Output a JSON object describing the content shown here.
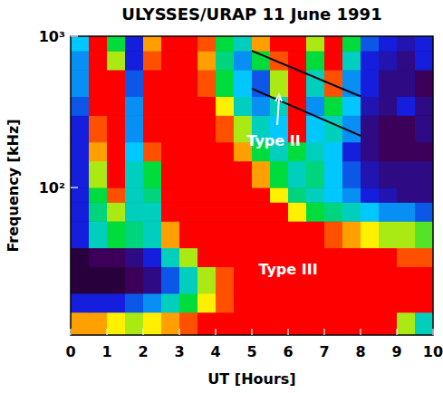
{
  "chart_data": {
    "type": "heatmap",
    "title": "ULYSSES/URAP 11 June 1991",
    "x_label": "UT [Hours]",
    "y_label": "Frequency [kHz]",
    "log": "y",
    "xlim": [
      0,
      10
    ],
    "ylim": [
      10.6,
      1000
    ],
    "xticks": [
      0,
      1,
      2,
      3,
      4,
      5,
      6,
      7,
      8,
      9,
      10
    ],
    "yticks": [
      {
        "value": 100,
        "label": "10²"
      },
      {
        "value": 1000,
        "label": "10³"
      }
    ],
    "zlim": [
      0,
      1
    ],
    "x_edges": [
      0,
      0.5,
      1,
      1.5,
      2,
      2.5,
      3,
      3.5,
      4,
      4.5,
      5,
      5.5,
      6,
      6.5,
      7,
      7.5,
      8,
      8.5,
      9,
      9.5,
      10
    ],
    "y_edges": [
      10.6,
      15,
      20,
      30,
      40,
      60,
      80,
      100,
      150,
      200,
      300,
      400,
      600,
      800,
      1000
    ],
    "cells": [
      [
        0.8,
        0.8,
        0.75,
        0.7,
        0.75,
        0.8,
        0.85,
        0.9,
        0.95,
        0.95,
        0.95,
        0.95,
        0.95,
        0.95,
        0.95,
        0.95,
        0.95,
        0.9,
        0.7,
        0.5
      ],
      [
        0.3,
        0.3,
        0.3,
        0.35,
        0.4,
        0.5,
        0.6,
        0.75,
        0.85,
        0.95,
        0.95,
        0.95,
        0.95,
        0.95,
        0.95,
        0.95,
        0.95,
        0.95,
        0.95,
        0.95
      ],
      [
        0.1,
        0.1,
        0.1,
        0.15,
        0.2,
        0.35,
        0.5,
        0.7,
        0.85,
        0.95,
        0.95,
        0.95,
        0.95,
        0.95,
        0.95,
        0.95,
        0.95,
        0.95,
        0.95,
        0.95
      ],
      [
        0.1,
        0.15,
        0.15,
        0.2,
        0.3,
        0.5,
        0.7,
        0.9,
        0.95,
        0.95,
        0.95,
        0.95,
        0.95,
        0.95,
        0.95,
        0.95,
        0.95,
        0.9,
        0.85,
        0.85
      ],
      [
        0.3,
        0.5,
        0.6,
        0.55,
        0.5,
        0.8,
        0.95,
        0.95,
        0.95,
        0.95,
        0.95,
        0.95,
        0.95,
        0.9,
        0.85,
        0.8,
        0.75,
        0.7,
        0.7,
        0.65
      ],
      [
        0.3,
        0.55,
        0.7,
        0.5,
        0.5,
        0.9,
        0.95,
        0.95,
        0.95,
        0.95,
        0.95,
        0.9,
        0.75,
        0.6,
        0.55,
        0.5,
        0.45,
        0.4,
        0.4,
        0.35
      ],
      [
        0.3,
        0.6,
        0.85,
        0.5,
        0.55,
        0.95,
        0.95,
        0.95,
        0.95,
        0.95,
        0.9,
        0.75,
        0.55,
        0.5,
        0.45,
        0.4,
        0.3,
        0.25,
        0.2,
        0.2
      ],
      [
        0.3,
        0.7,
        0.9,
        0.5,
        0.6,
        0.95,
        0.95,
        0.95,
        0.95,
        0.9,
        0.8,
        0.6,
        0.5,
        0.55,
        0.45,
        0.35,
        0.25,
        0.2,
        0.2,
        0.2
      ],
      [
        0.3,
        0.8,
        0.9,
        0.45,
        0.85,
        0.95,
        0.95,
        0.95,
        0.9,
        0.8,
        0.6,
        0.5,
        0.6,
        0.5,
        0.45,
        0.3,
        0.2,
        0.15,
        0.15,
        0.15
      ],
      [
        0.3,
        0.85,
        0.95,
        0.4,
        0.9,
        0.95,
        0.95,
        0.95,
        0.85,
        0.7,
        0.5,
        0.45,
        0.9,
        0.45,
        0.5,
        0.4,
        0.2,
        0.15,
        0.15,
        0.2
      ],
      [
        0.35,
        0.9,
        0.95,
        0.4,
        0.9,
        0.95,
        0.95,
        0.9,
        0.75,
        0.5,
        0.4,
        0.5,
        0.95,
        0.4,
        0.6,
        0.45,
        0.25,
        0.2,
        0.3,
        0.2
      ],
      [
        0.4,
        0.9,
        0.9,
        0.35,
        0.9,
        0.95,
        0.95,
        0.85,
        0.6,
        0.45,
        0.35,
        0.7,
        0.95,
        0.5,
        0.85,
        0.4,
        0.3,
        0.2,
        0.2,
        0.15
      ],
      [
        0.4,
        0.95,
        0.7,
        0.3,
        0.85,
        0.95,
        0.95,
        0.8,
        0.55,
        0.4,
        0.6,
        0.85,
        0.95,
        0.6,
        0.9,
        0.5,
        0.3,
        0.25,
        0.2,
        0.3
      ],
      [
        0.45,
        0.95,
        0.6,
        0.3,
        0.8,
        0.95,
        0.95,
        0.85,
        0.6,
        0.5,
        0.8,
        0.9,
        0.95,
        0.7,
        0.95,
        0.6,
        0.35,
        0.3,
        0.25,
        0.3
      ]
    ],
    "lines": [
      {
        "x": [
          5,
          8
        ],
        "y": [
          800,
          400
        ],
        "color": "#000000"
      },
      {
        "x": [
          5,
          8
        ],
        "y": [
          450,
          220
        ],
        "color": "#000000"
      }
    ],
    "annotations": [
      {
        "text": "Type II",
        "x": 5.6,
        "y": 205,
        "arrow_to": [
          5.75,
          410
        ],
        "color": "#ffffff"
      },
      {
        "text": "Type III",
        "x": 6,
        "y": 29,
        "color": "#ffffff"
      }
    ]
  }
}
